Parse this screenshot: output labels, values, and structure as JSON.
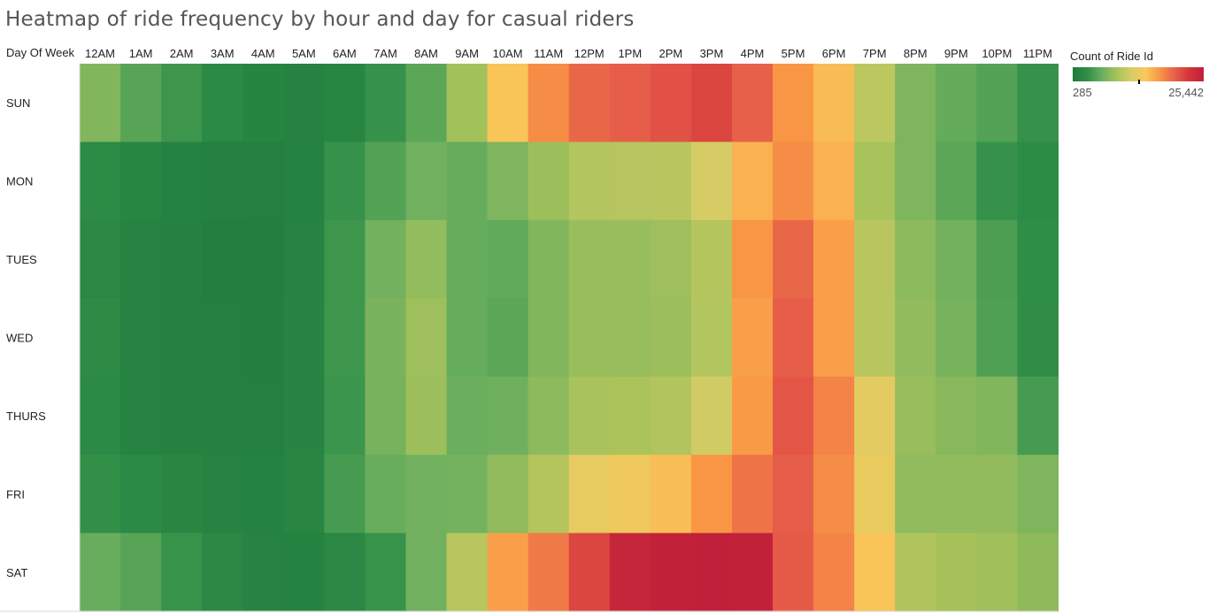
{
  "title": "Heatmap of ride frequency by hour and day for casual riders",
  "chart_data": {
    "type": "heatmap",
    "title": "Heatmap of ride frequency by hour and day for casual riders",
    "row_header": "Day Of Week",
    "x": [
      "12AM",
      "1AM",
      "2AM",
      "3AM",
      "4AM",
      "5AM",
      "6AM",
      "7AM",
      "8AM",
      "9AM",
      "10AM",
      "11AM",
      "12PM",
      "1PM",
      "2PM",
      "3PM",
      "4PM",
      "5PM",
      "6PM",
      "7PM",
      "8PM",
      "9PM",
      "10PM",
      "11PM"
    ],
    "y": [
      "SUN",
      "MON",
      "TUES",
      "WED",
      "THURS",
      "FRI",
      "SAT"
    ],
    "values": [
      [
        7000,
        5000,
        3800,
        2500,
        1800,
        1400,
        2000,
        3400,
        5200,
        8500,
        14500,
        17500,
        19500,
        20000,
        20800,
        21500,
        19800,
        17000,
        15000,
        10000,
        6800,
        5600,
        4800,
        3400
      ],
      [
        2600,
        2000,
        1500,
        1200,
        1100,
        1500,
        3400,
        4800,
        6200,
        5700,
        6800,
        8200,
        9400,
        9600,
        9800,
        11500,
        15500,
        17500,
        15500,
        8800,
        6800,
        5200,
        3400,
        2600
      ],
      [
        2300,
        1600,
        1300,
        1000,
        1000,
        1600,
        3800,
        6300,
        7800,
        5700,
        5500,
        7000,
        8000,
        8000,
        8300,
        9500,
        17000,
        19500,
        16500,
        9800,
        7500,
        6300,
        4500,
        2900
      ],
      [
        2700,
        1600,
        1300,
        1100,
        1000,
        1700,
        3800,
        6600,
        8300,
        5700,
        5200,
        7000,
        8000,
        8000,
        8200,
        9400,
        16500,
        20000,
        16500,
        9700,
        7700,
        6500,
        4600,
        3000
      ],
      [
        2500,
        1600,
        1300,
        1200,
        1100,
        1700,
        3700,
        6500,
        8200,
        5900,
        6100,
        7500,
        8800,
        9000,
        9300,
        11200,
        16800,
        20500,
        18000,
        12500,
        8000,
        7300,
        7000,
        4200
      ],
      [
        3200,
        2500,
        1900,
        1600,
        1500,
        1900,
        4200,
        5800,
        6200,
        6400,
        7700,
        9500,
        12800,
        13500,
        14800,
        17000,
        18800,
        20000,
        17500,
        13000,
        7700,
        7700,
        7700,
        6800
      ],
      [
        5800,
        5000,
        3500,
        2200,
        1600,
        1500,
        2300,
        3500,
        6200,
        9800,
        16500,
        18500,
        21500,
        24500,
        25000,
        25300,
        25000,
        20200,
        18000,
        14500,
        9200,
        8700,
        8400,
        7600
      ]
    ],
    "scale": {
      "title": "Count of Ride Id",
      "min": 285,
      "max": 25442,
      "min_label": "285",
      "max_label": "25,442"
    },
    "colors": [
      "#1e7a3c",
      "#2f8e47",
      "#6aae5e",
      "#a6c25b",
      "#d6cc66",
      "#f9c85a",
      "#f99545",
      "#e7604a",
      "#d4343a",
      "#bf1f39"
    ]
  }
}
